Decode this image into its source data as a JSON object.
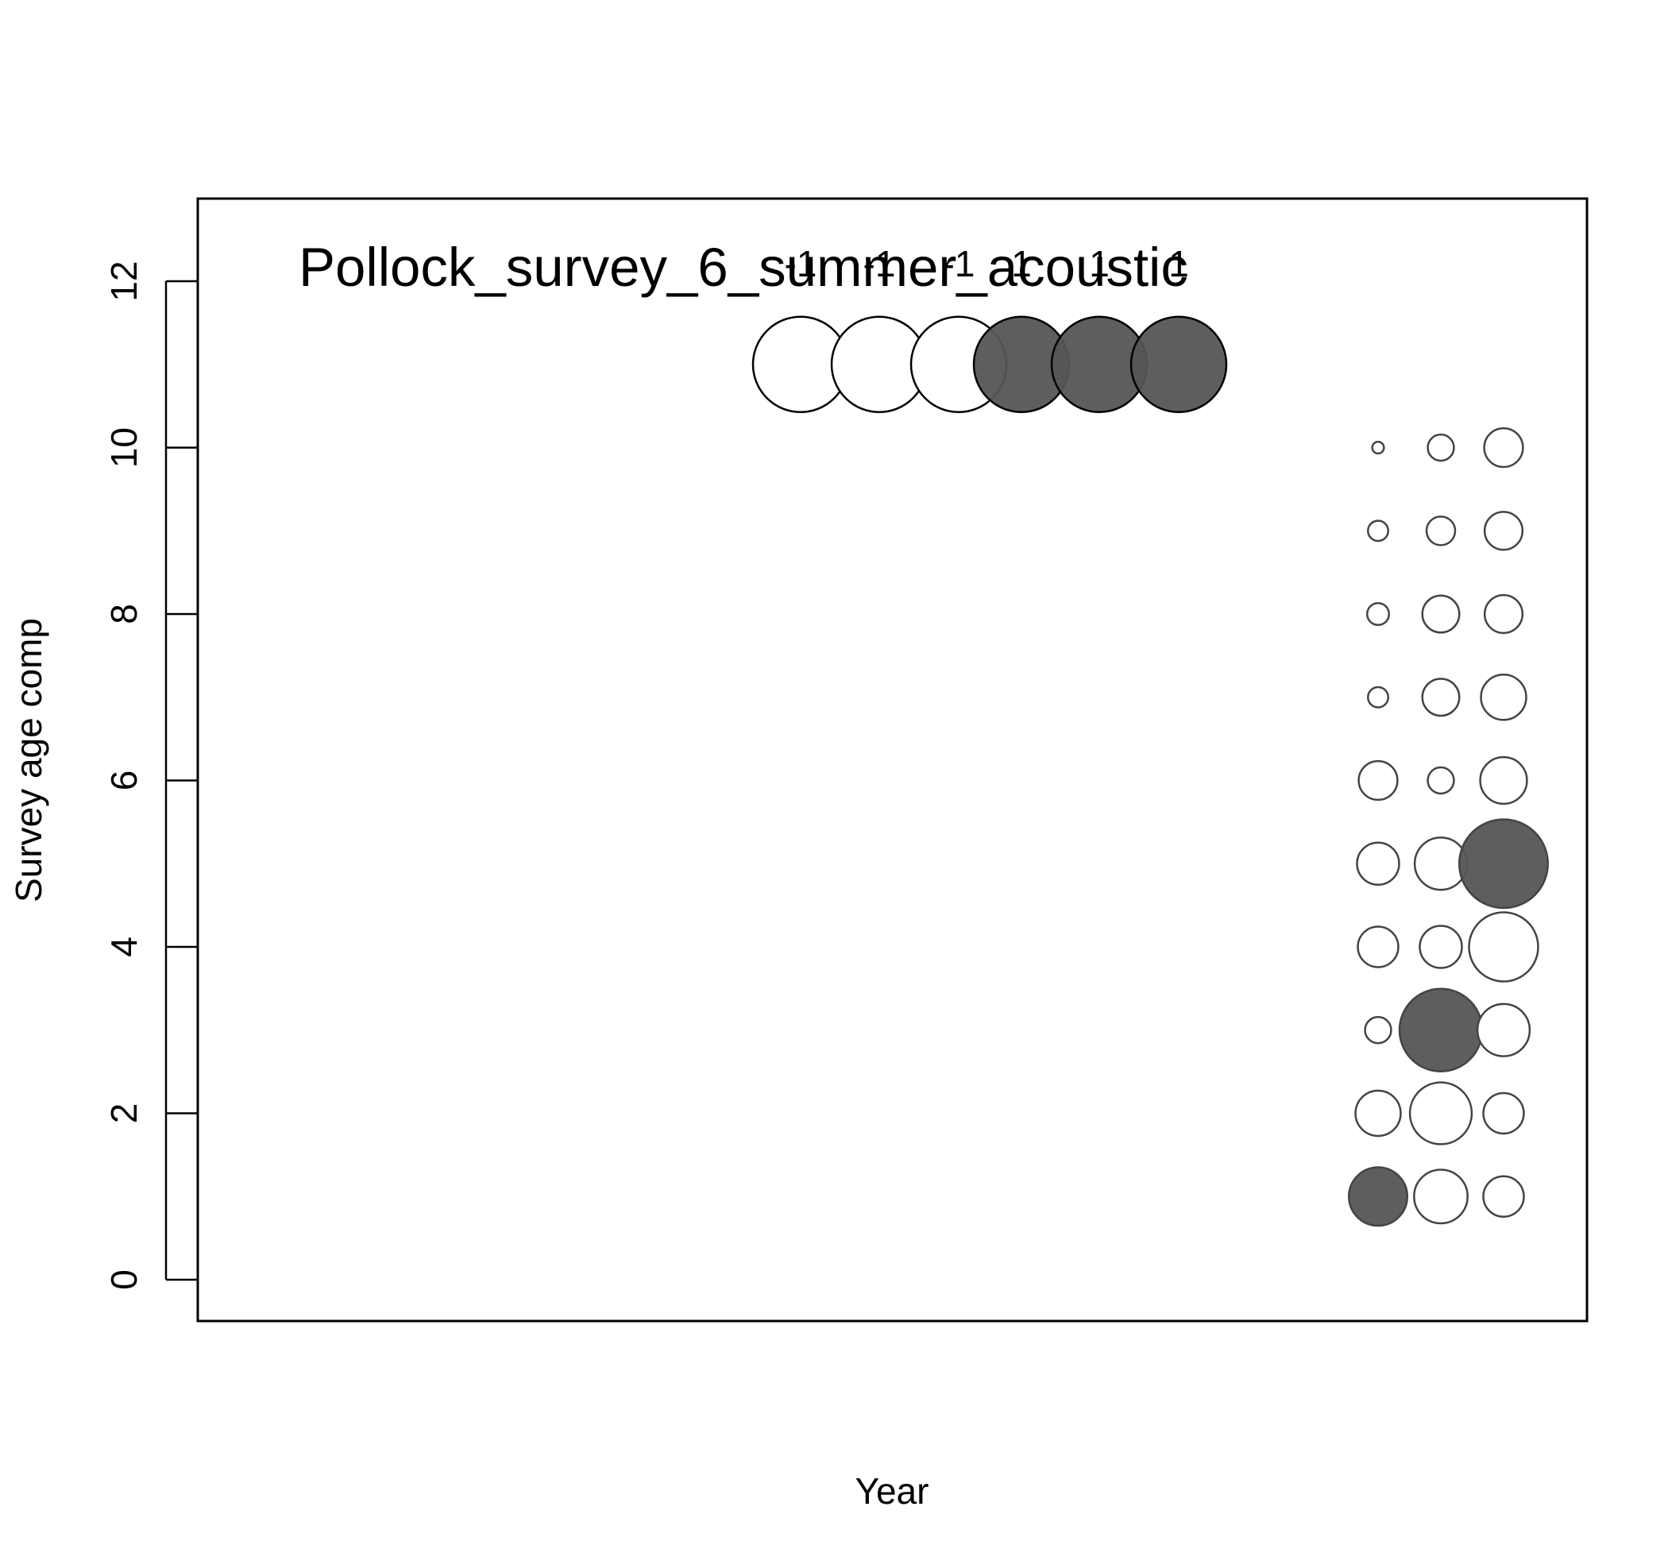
{
  "chart_data": {
    "type": "scatter",
    "subtype": "bubble",
    "title": "Pollock_survey_6_summer_acoustic",
    "xlabel": "Year",
    "ylabel": "Survey age comp",
    "ylim": [
      -0.5,
      13
    ],
    "yticks": [
      0,
      2,
      4,
      6,
      8,
      10,
      12
    ],
    "xticks_visible": false,
    "grid": false,
    "legend": {
      "placement": "top",
      "labels": [
        "-1",
        "-1",
        "-1",
        "1",
        "1",
        "1"
      ],
      "values": [
        -1,
        -1,
        -1,
        1,
        1,
        1
      ],
      "y": 11
    },
    "fill_positive": "#555555",
    "fill_negative": "#ffffff",
    "stroke": "#000000",
    "series": [
      {
        "x_index": 0,
        "points": [
          {
            "y": 1,
            "value": 0.5
          },
          {
            "y": 2,
            "value": -0.3
          },
          {
            "y": 3,
            "value": -0.1
          },
          {
            "y": 4,
            "value": -0.24
          },
          {
            "y": 5,
            "value": -0.26
          },
          {
            "y": 6,
            "value": -0.22
          },
          {
            "y": 7,
            "value": -0.06
          },
          {
            "y": 8,
            "value": -0.07
          },
          {
            "y": 9,
            "value": -0.06
          },
          {
            "y": 10,
            "value": -0.02
          }
        ]
      },
      {
        "x_index": 1,
        "points": [
          {
            "y": 1,
            "value": -0.42
          },
          {
            "y": 2,
            "value": -0.56
          },
          {
            "y": 3,
            "value": 1.0
          },
          {
            "y": 4,
            "value": -0.26
          },
          {
            "y": 5,
            "value": -0.4
          },
          {
            "y": 6,
            "value": -0.1
          },
          {
            "y": 7,
            "value": -0.2
          },
          {
            "y": 8,
            "value": -0.2
          },
          {
            "y": 9,
            "value": -0.12
          },
          {
            "y": 10,
            "value": -0.1
          }
        ]
      },
      {
        "x_index": 2,
        "points": [
          {
            "y": 1,
            "value": -0.24
          },
          {
            "y": 2,
            "value": -0.24
          },
          {
            "y": 3,
            "value": -0.4
          },
          {
            "y": 4,
            "value": -0.7
          },
          {
            "y": 5,
            "value": 1.15
          },
          {
            "y": 6,
            "value": -0.32
          },
          {
            "y": 7,
            "value": -0.3
          },
          {
            "y": 8,
            "value": -0.21
          },
          {
            "y": 9,
            "value": -0.21
          },
          {
            "y": 10,
            "value": -0.22
          }
        ]
      }
    ]
  }
}
